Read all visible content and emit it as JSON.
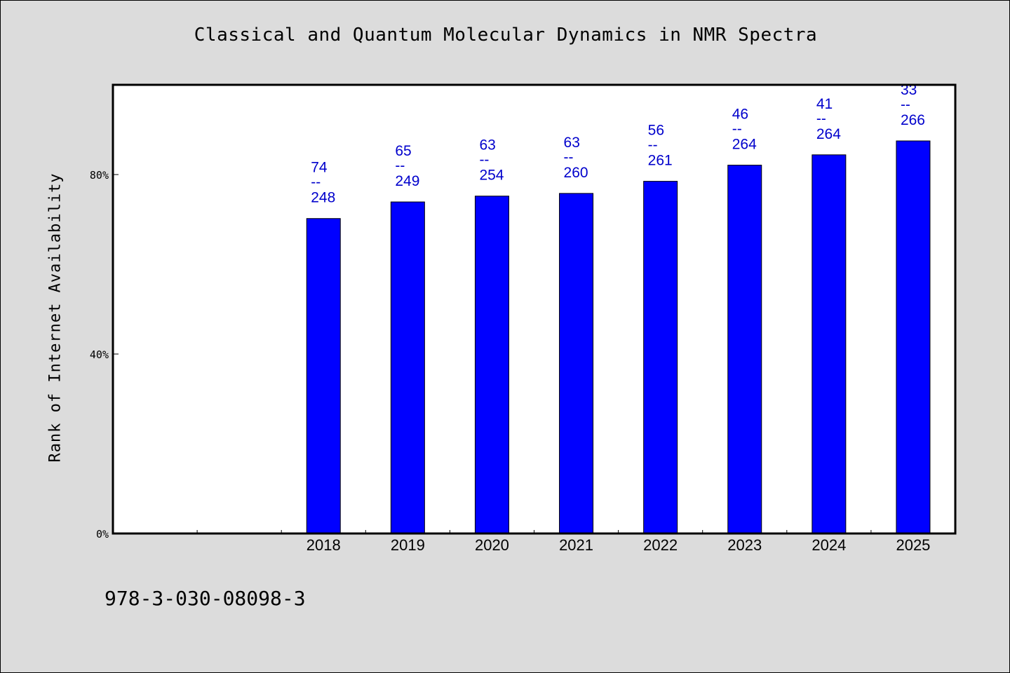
{
  "page": {
    "background": "#dcdcdc",
    "footer_code": "978-3-030-08098-3"
  },
  "chart_data": {
    "type": "bar",
    "title": "Classical and Quantum Molecular Dynamics in NMR Spectra",
    "xlabel": "",
    "ylabel": "Rank of Internet Availability",
    "categories": [
      "2018",
      "2019",
      "2020",
      "2021",
      "2022",
      "2023",
      "2024",
      "2025"
    ],
    "values": [
      70.2,
      73.9,
      75.2,
      75.8,
      78.5,
      82.1,
      84.4,
      87.5
    ],
    "value_unit": "%",
    "bar_labels": [
      {
        "top": "74",
        "sep": "--",
        "bottom": "248"
      },
      {
        "top": "65",
        "sep": "--",
        "bottom": "249"
      },
      {
        "top": "63",
        "sep": "--",
        "bottom": "254"
      },
      {
        "top": "63",
        "sep": "--",
        "bottom": "260"
      },
      {
        "top": "56",
        "sep": "--",
        "bottom": "261"
      },
      {
        "top": "46",
        "sep": "--",
        "bottom": "264"
      },
      {
        "top": "41",
        "sep": "--",
        "bottom": "264"
      },
      {
        "top": "33",
        "sep": "--",
        "bottom": "266"
      }
    ],
    "y_ticks": [
      {
        "value": 0,
        "label": "0%"
      },
      {
        "value": 40,
        "label": "40%"
      },
      {
        "value": 80,
        "label": "80%"
      }
    ],
    "ylim": [
      0,
      100
    ],
    "x_slots": 10,
    "first_bar_slot": 2,
    "grid": false,
    "legend": "none",
    "colors": {
      "bar": "#0000ff",
      "bar_stroke": "#000000",
      "label": "#0000cc",
      "plot_background": "#ffffff",
      "axis": "#000000"
    }
  }
}
